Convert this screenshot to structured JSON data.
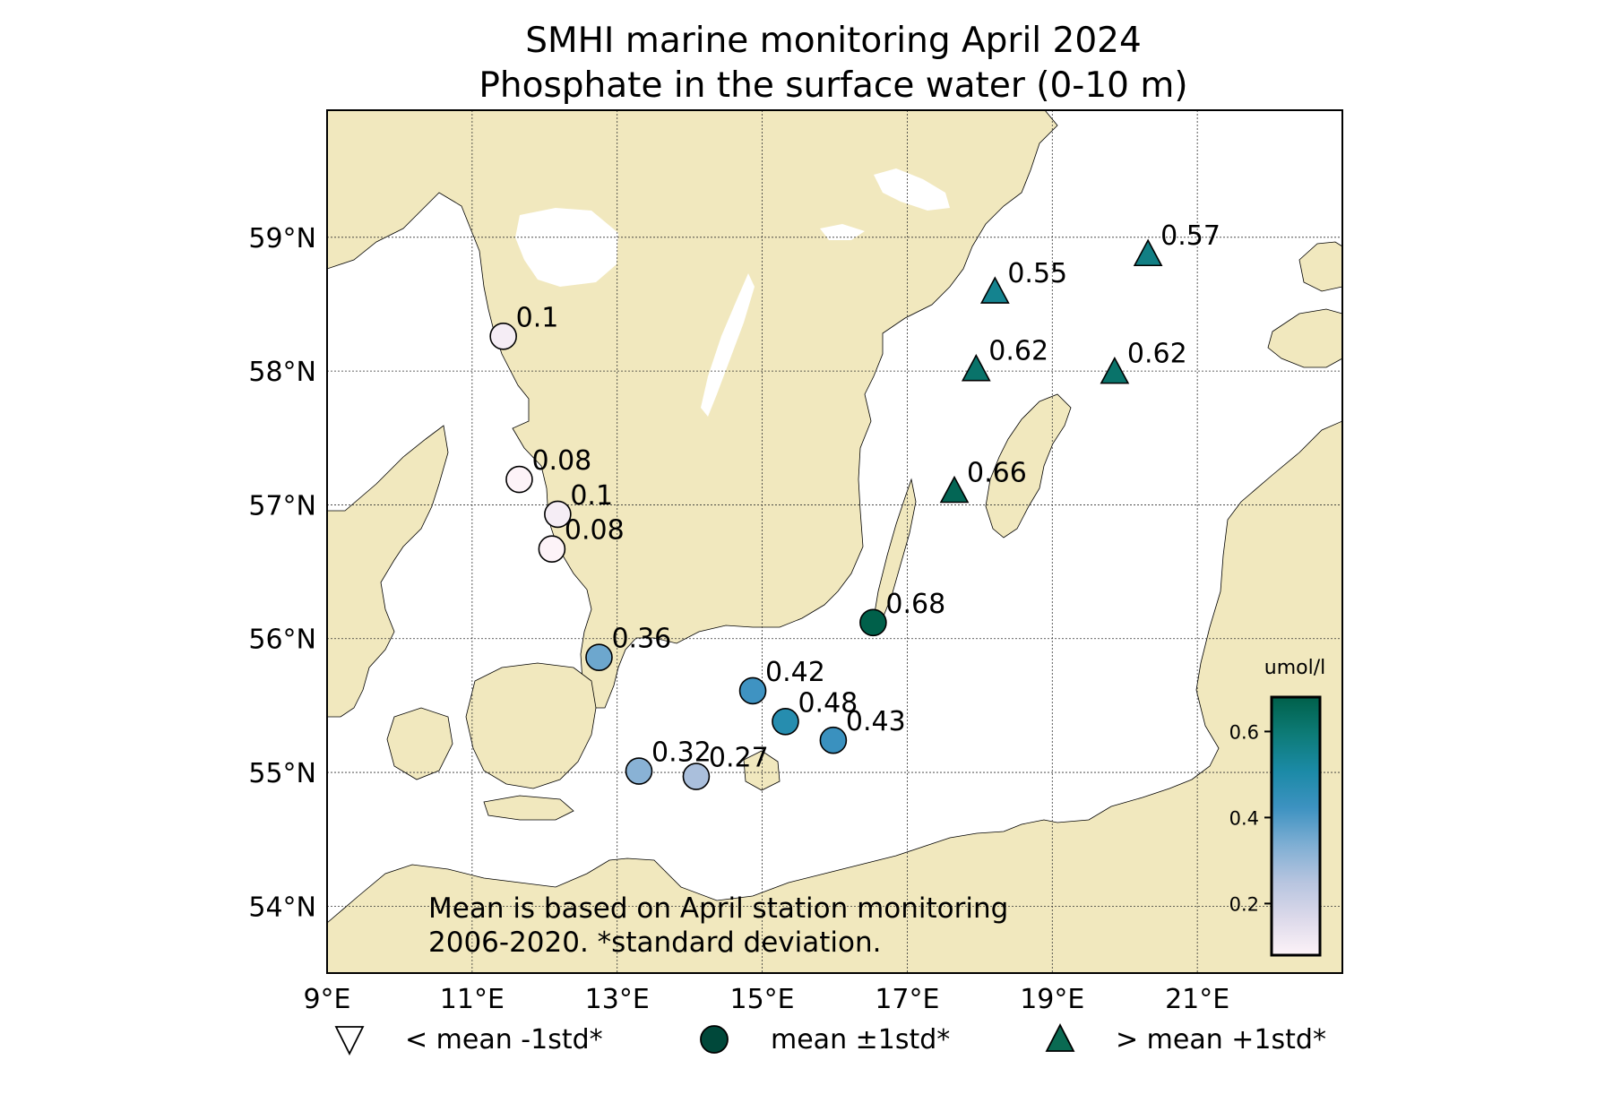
{
  "title": {
    "line1": "SMHI marine monitoring April 2024",
    "line2": "Phosphate in the surface water (0-10 m)"
  },
  "note": {
    "line1": "Mean is based on April station monitoring",
    "line2": "2006-2020. *standard deviation."
  },
  "colors": {
    "land": "#f1e8be",
    "sea": "#ffffff",
    "frame": "#000000",
    "grid": "#333333"
  },
  "colorbar": {
    "label": "umol/l",
    "ticks": [
      "0.2",
      "0.4",
      "0.6"
    ],
    "tick_values": [
      0.2,
      0.4,
      0.6
    ],
    "range": [
      0.08,
      0.68
    ],
    "colors": [
      "#fdf3f8",
      "#dcd9ea",
      "#b6c4df",
      "#7eaed3",
      "#3d92c1",
      "#1b8aa6",
      "#0d7b77",
      "#00604a"
    ]
  },
  "legend": [
    {
      "symbol": "triangle-down",
      "label": "< mean -1std*"
    },
    {
      "symbol": "circle",
      "label": "mean ±1std*"
    },
    {
      "symbol": "triangle-up",
      "label": "> mean +1std*"
    }
  ],
  "chart_data": {
    "type": "scatter",
    "title": "SMHI marine monitoring April 2024 / Phosphate in the surface water (0-10 m)",
    "xlim": [
      9.0,
      23.0
    ],
    "ylim": [
      53.5,
      59.95
    ],
    "x_ticks": [
      9,
      11,
      13,
      15,
      17,
      19,
      21
    ],
    "x_tick_labels": [
      "9°E",
      "11°E",
      "13°E",
      "15°E",
      "17°E",
      "19°E",
      "21°E"
    ],
    "y_ticks": [
      54,
      55,
      56,
      57,
      58,
      59
    ],
    "y_tick_labels": [
      "54°N",
      "55°N",
      "56°N",
      "57°N",
      "58°N",
      "59°N"
    ],
    "grid": true,
    "stations": [
      {
        "lon": 11.43,
        "lat": 58.26,
        "value": 0.1,
        "label": "0.1",
        "symbol": "circle"
      },
      {
        "lon": 11.65,
        "lat": 57.19,
        "value": 0.08,
        "label": "0.08",
        "symbol": "circle"
      },
      {
        "lon": 12.18,
        "lat": 56.93,
        "value": 0.1,
        "label": "0.1",
        "symbol": "circle"
      },
      {
        "lon": 12.1,
        "lat": 56.67,
        "value": 0.08,
        "label": "0.08",
        "symbol": "circle"
      },
      {
        "lon": 12.75,
        "lat": 55.86,
        "value": 0.36,
        "label": "0.36",
        "symbol": "circle"
      },
      {
        "lon": 13.3,
        "lat": 55.01,
        "value": 0.32,
        "label": "0.32",
        "symbol": "circle"
      },
      {
        "lon": 14.09,
        "lat": 54.97,
        "value": 0.27,
        "label": "0.27",
        "symbol": "circle"
      },
      {
        "lon": 14.87,
        "lat": 55.61,
        "value": 0.42,
        "label": "0.42",
        "symbol": "circle"
      },
      {
        "lon": 15.32,
        "lat": 55.38,
        "value": 0.48,
        "label": "0.48",
        "symbol": "circle"
      },
      {
        "lon": 15.98,
        "lat": 55.24,
        "value": 0.43,
        "label": "0.43",
        "symbol": "circle"
      },
      {
        "lon": 16.53,
        "lat": 56.12,
        "value": 0.68,
        "label": "0.68",
        "symbol": "circle"
      },
      {
        "lon": 17.65,
        "lat": 57.1,
        "value": 0.66,
        "label": "0.66",
        "symbol": "triangle-up"
      },
      {
        "lon": 17.95,
        "lat": 58.01,
        "value": 0.62,
        "label": "0.62",
        "symbol": "triangle-up"
      },
      {
        "lon": 18.21,
        "lat": 58.59,
        "value": 0.55,
        "label": "0.55",
        "symbol": "triangle-up"
      },
      {
        "lon": 19.86,
        "lat": 57.99,
        "value": 0.62,
        "label": "0.62",
        "symbol": "triangle-up"
      },
      {
        "lon": 20.32,
        "lat": 58.87,
        "value": 0.57,
        "label": "0.57",
        "symbol": "triangle-up"
      }
    ]
  }
}
